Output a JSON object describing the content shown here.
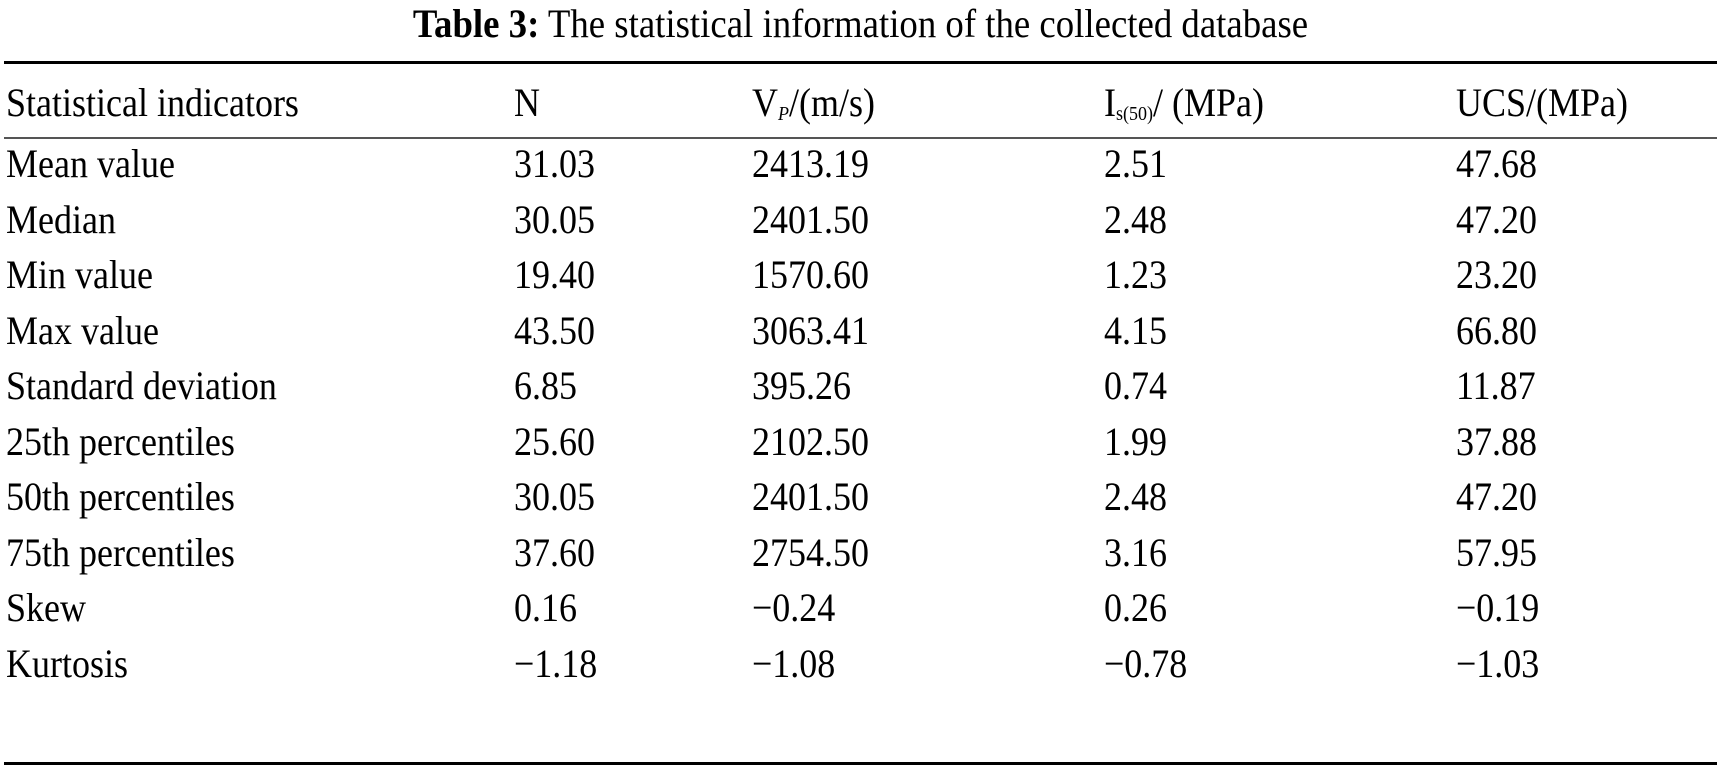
{
  "caption": {
    "label": "Table 3:",
    "text": "The statistical information of the collected database"
  },
  "table": {
    "headers": {
      "indicator": "Statistical indicators",
      "n": "N",
      "vp": {
        "main": "V",
        "sub": "P",
        "rest": "/(m/s)"
      },
      "is50": {
        "main": "I",
        "sub": "s(50)",
        "rest": "/ (MPa)"
      },
      "ucs": "UCS/(MPa)"
    },
    "rows": [
      {
        "indicator": "Mean value",
        "n": "31.03",
        "vp": "2413.19",
        "is50": "2.51",
        "ucs": "47.68"
      },
      {
        "indicator": "Median",
        "n": "30.05",
        "vp": "2401.50",
        "is50": "2.48",
        "ucs": "47.20"
      },
      {
        "indicator": "Min value",
        "n": "19.40",
        "vp": "1570.60",
        "is50": "1.23",
        "ucs": "23.20"
      },
      {
        "indicator": "Max value",
        "n": "43.50",
        "vp": "3063.41",
        "is50": "4.15",
        "ucs": "66.80"
      },
      {
        "indicator": "Standard deviation",
        "n": "6.85",
        "vp": "395.26",
        "is50": "0.74",
        "ucs": "11.87"
      },
      {
        "indicator": "25th percentiles",
        "n": "25.60",
        "vp": "2102.50",
        "is50": "1.99",
        "ucs": "37.88"
      },
      {
        "indicator": "50th percentiles",
        "n": "30.05",
        "vp": "2401.50",
        "is50": "2.48",
        "ucs": "47.20"
      },
      {
        "indicator": "75th percentiles",
        "n": "37.60",
        "vp": "2754.50",
        "is50": "3.16",
        "ucs": "57.95"
      },
      {
        "indicator": "Skew",
        "n": "0.16",
        "vp": "−0.24",
        "is50": "0.26",
        "ucs": "−0.19"
      },
      {
        "indicator": "Kurtosis",
        "n": "−1.18",
        "vp": "−1.08",
        "is50": "−0.78",
        "ucs": "−1.03"
      }
    ]
  }
}
